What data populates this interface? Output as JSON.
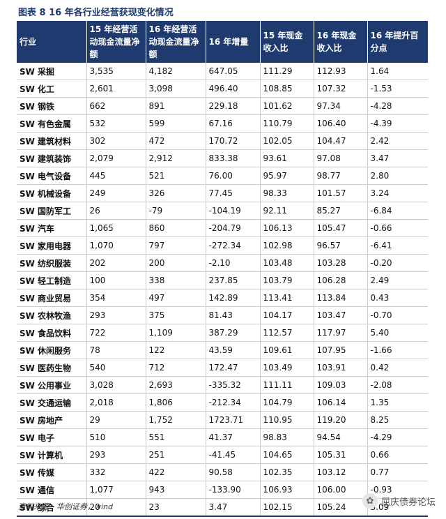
{
  "title": "图表 8    16 年各行业经营获现变化情况",
  "table": {
    "headers": [
      "行业",
      "15 年经营活动现金流量净额",
      "16 年经营活动现金流量净额",
      "16 年增量",
      "15 年现金收入比",
      "16 年现金收入比",
      "16 年提升百分点"
    ],
    "rows": [
      [
        "SW 采掘",
        "3,535",
        "4,182",
        "647.05",
        "111.29",
        "112.93",
        "1.64"
      ],
      [
        "SW 化工",
        "2,601",
        "3,098",
        "496.40",
        "108.85",
        "107.32",
        "-1.53"
      ],
      [
        "SW 钢铁",
        "662",
        "891",
        "229.18",
        "101.62",
        "97.34",
        "-4.28"
      ],
      [
        "SW 有色金属",
        "532",
        "599",
        "67.16",
        "110.79",
        "106.40",
        "-4.39"
      ],
      [
        "SW 建筑材料",
        "302",
        "472",
        "170.72",
        "102.05",
        "104.47",
        "2.42"
      ],
      [
        "SW 建筑装饰",
        "2,079",
        "2,912",
        "833.38",
        "93.61",
        "97.08",
        "3.47"
      ],
      [
        "SW 电气设备",
        "445",
        "521",
        "76.00",
        "95.97",
        "98.77",
        "2.80"
      ],
      [
        "SW 机械设备",
        "249",
        "326",
        "77.45",
        "98.33",
        "101.57",
        "3.24"
      ],
      [
        "SW 国防军工",
        "26",
        "-79",
        "-104.19",
        "92.11",
        "85.27",
        "-6.84"
      ],
      [
        "SW 汽车",
        "1,065",
        "860",
        "-204.79",
        "106.13",
        "105.47",
        "-0.66"
      ],
      [
        "SW 家用电器",
        "1,070",
        "797",
        "-272.34",
        "102.98",
        "96.57",
        "-6.41"
      ],
      [
        "SW 纺织服装",
        "202",
        "200",
        "-2.10",
        "103.48",
        "103.28",
        "-0.20"
      ],
      [
        "SW 轻工制造",
        "100",
        "338",
        "237.85",
        "103.79",
        "106.28",
        "2.49"
      ],
      [
        "SW 商业贸易",
        "354",
        "497",
        "142.89",
        "113.41",
        "113.84",
        "0.43"
      ],
      [
        "SW 农林牧渔",
        "293",
        "375",
        "81.43",
        "104.17",
        "103.47",
        "-0.70"
      ],
      [
        "SW 食品饮料",
        "722",
        "1,109",
        "387.29",
        "112.57",
        "117.97",
        "5.40"
      ],
      [
        "SW 休闲服务",
        "78",
        "122",
        "43.59",
        "109.61",
        "107.95",
        "-1.66"
      ],
      [
        "SW 医药生物",
        "540",
        "712",
        "172.47",
        "103.49",
        "103.91",
        "0.42"
      ],
      [
        "SW 公用事业",
        "3,028",
        "2,693",
        "-335.32",
        "111.11",
        "109.03",
        "-2.08"
      ],
      [
        "SW 交通运输",
        "2,018",
        "1,806",
        "-212.34",
        "104.79",
        "106.14",
        "1.35"
      ],
      [
        "SW 房地产",
        "29",
        "1,752",
        "1723.71",
        "110.95",
        "119.20",
        "8.25"
      ],
      [
        "SW 电子",
        "510",
        "551",
        "41.37",
        "98.83",
        "94.54",
        "-4.29"
      ],
      [
        "SW 计算机",
        "293",
        "251",
        "-41.45",
        "104.65",
        "105.31",
        "0.66"
      ],
      [
        "SW 传媒",
        "332",
        "422",
        "90.58",
        "102.35",
        "103.12",
        "0.77"
      ],
      [
        "SW 通信",
        "1,077",
        "943",
        "-133.90",
        "106.93",
        "106.00",
        "-0.93"
      ],
      [
        "SW 综合",
        "20",
        "23",
        "3.47",
        "102.15",
        "105.24",
        "3.09"
      ]
    ]
  },
  "source": "资料来源：华创证券，wind",
  "watermark": {
    "text": "屈庆债券论坛",
    "icon": "wechat-icon"
  },
  "colors": {
    "header_bg": "#1f3a6e",
    "header_text": "#ffffff",
    "grid": "#c8ccd4"
  }
}
